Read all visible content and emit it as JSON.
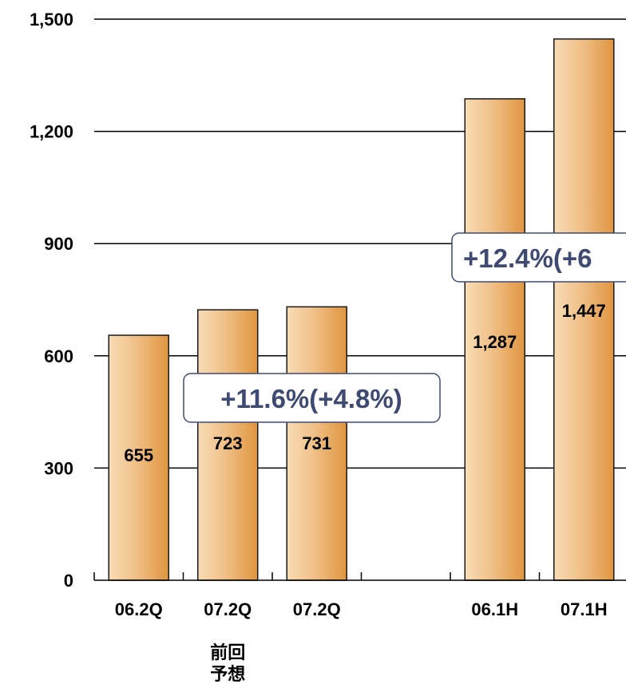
{
  "chart_data": {
    "type": "bar",
    "categories": [
      "06.2Q",
      "07.2Q",
      "07.2Q",
      "",
      "06.1H",
      "07.1H"
    ],
    "sub_labels": [
      "",
      "前回\n予想",
      "",
      "",
      "",
      ""
    ],
    "values": [
      655,
      723,
      731,
      null,
      1287,
      1447
    ],
    "value_labels": [
      "655",
      "723",
      "731",
      "",
      "1,287",
      "1,447"
    ],
    "ylim": [
      0,
      1500
    ],
    "yticks": [
      0,
      300,
      600,
      900,
      1200,
      1500
    ],
    "ytick_labels": [
      "0",
      "300",
      "600",
      "900",
      "1,200",
      "1,500"
    ],
    "grid": true,
    "colors": {
      "bar_light": "#f8dcb6",
      "bar_dark": "#e0953f",
      "bar_edge": "#1a1a1a",
      "callout_text": "#3f4a73"
    },
    "annotations": [
      {
        "text": "+11.6%(+4.8%)"
      },
      {
        "text": "+12.4%(+6"
      }
    ]
  }
}
